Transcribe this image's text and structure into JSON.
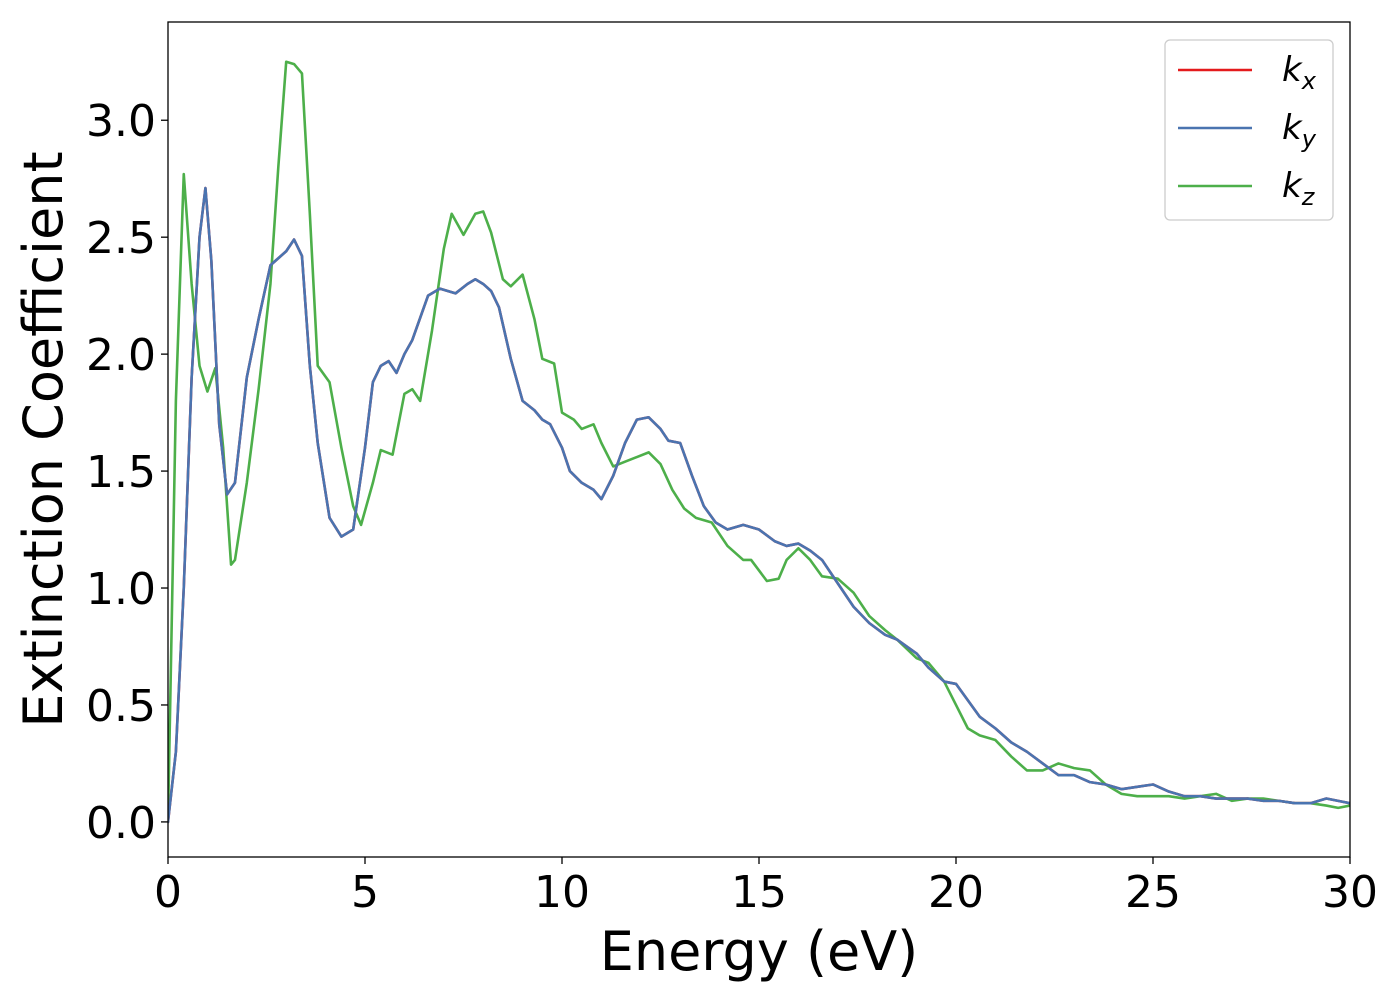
{
  "chart_data": {
    "type": "line",
    "xlabel": "Energy (eV)",
    "ylabel": "Extinction Coefficient",
    "xlim": [
      0,
      30
    ],
    "ylim": [
      -0.15,
      3.42
    ],
    "xticks": [
      "0",
      "5",
      "10",
      "15",
      "20",
      "25",
      "30"
    ],
    "yticks": [
      "0.0",
      "0.5",
      "1.0",
      "1.5",
      "2.0",
      "2.5",
      "3.0"
    ],
    "grid": false,
    "legend_position": "top-right",
    "series": [
      {
        "name": "k_x",
        "label_main": "k",
        "label_sub": "x",
        "color": "#e41a1c",
        "x": [
          0,
          0.2,
          0.4,
          0.6,
          0.8,
          0.95,
          1.1,
          1.3,
          1.5,
          1.7,
          2.0,
          2.3,
          2.6,
          2.8,
          3.0,
          3.2,
          3.4,
          3.6,
          3.8,
          4.1,
          4.4,
          4.7,
          5.0,
          5.2,
          5.4,
          5.6,
          5.8,
          6.0,
          6.2,
          6.6,
          6.9,
          7.3,
          7.6,
          7.8,
          8.0,
          8.2,
          8.4,
          8.7,
          9.0,
          9.3,
          9.5,
          9.7,
          10.0,
          10.2,
          10.5,
          10.8,
          11.0,
          11.3,
          11.6,
          11.9,
          12.2,
          12.5,
          12.7,
          13.0,
          13.3,
          13.6,
          13.9,
          14.2,
          14.6,
          15.0,
          15.4,
          15.7,
          16.0,
          16.3,
          16.6,
          17.0,
          17.4,
          17.8,
          18.2,
          18.5,
          19.0,
          19.3,
          19.7,
          20.0,
          20.3,
          20.6,
          21.0,
          21.4,
          21.8,
          22.2,
          22.6,
          23.0,
          23.4,
          23.8,
          24.2,
          24.6,
          25.0,
          25.4,
          25.8,
          26.2,
          26.6,
          27.0,
          27.4,
          27.8,
          28.2,
          28.6,
          29.0,
          29.4,
          29.7,
          30.0
        ],
        "y": [
          0.0,
          0.3,
          1.0,
          1.9,
          2.5,
          2.71,
          2.4,
          1.7,
          1.4,
          1.45,
          1.9,
          2.15,
          2.38,
          2.41,
          2.44,
          2.49,
          2.42,
          1.95,
          1.62,
          1.3,
          1.22,
          1.25,
          1.6,
          1.88,
          1.95,
          1.97,
          1.92,
          2.0,
          2.06,
          2.25,
          2.28,
          2.26,
          2.3,
          2.32,
          2.3,
          2.27,
          2.2,
          1.98,
          1.8,
          1.76,
          1.72,
          1.7,
          1.6,
          1.5,
          1.45,
          1.42,
          1.38,
          1.48,
          1.62,
          1.72,
          1.73,
          1.68,
          1.63,
          1.62,
          1.48,
          1.35,
          1.28,
          1.25,
          1.27,
          1.25,
          1.2,
          1.18,
          1.19,
          1.16,
          1.12,
          1.02,
          0.92,
          0.85,
          0.8,
          0.78,
          0.72,
          0.66,
          0.6,
          0.59,
          0.52,
          0.45,
          0.4,
          0.34,
          0.3,
          0.25,
          0.2,
          0.2,
          0.17,
          0.16,
          0.14,
          0.15,
          0.16,
          0.13,
          0.11,
          0.11,
          0.1,
          0.1,
          0.1,
          0.09,
          0.09,
          0.08,
          0.08,
          0.1,
          0.09,
          0.08
        ]
      },
      {
        "name": "k_y",
        "label_main": "k",
        "label_sub": "y",
        "color": "#4a74b0",
        "x": [
          0,
          0.2,
          0.4,
          0.6,
          0.8,
          0.95,
          1.1,
          1.3,
          1.5,
          1.7,
          2.0,
          2.3,
          2.6,
          2.8,
          3.0,
          3.2,
          3.4,
          3.6,
          3.8,
          4.1,
          4.4,
          4.7,
          5.0,
          5.2,
          5.4,
          5.6,
          5.8,
          6.0,
          6.2,
          6.6,
          6.9,
          7.3,
          7.6,
          7.8,
          8.0,
          8.2,
          8.4,
          8.7,
          9.0,
          9.3,
          9.5,
          9.7,
          10.0,
          10.2,
          10.5,
          10.8,
          11.0,
          11.3,
          11.6,
          11.9,
          12.2,
          12.5,
          12.7,
          13.0,
          13.3,
          13.6,
          13.9,
          14.2,
          14.6,
          15.0,
          15.4,
          15.7,
          16.0,
          16.3,
          16.6,
          17.0,
          17.4,
          17.8,
          18.2,
          18.5,
          19.0,
          19.3,
          19.7,
          20.0,
          20.3,
          20.6,
          21.0,
          21.4,
          21.8,
          22.2,
          22.6,
          23.0,
          23.4,
          23.8,
          24.2,
          24.6,
          25.0,
          25.4,
          25.8,
          26.2,
          26.6,
          27.0,
          27.4,
          27.8,
          28.2,
          28.6,
          29.0,
          29.4,
          29.7,
          30.0
        ],
        "y": [
          0.0,
          0.3,
          1.0,
          1.9,
          2.5,
          2.71,
          2.4,
          1.7,
          1.4,
          1.45,
          1.9,
          2.15,
          2.38,
          2.41,
          2.44,
          2.49,
          2.42,
          1.95,
          1.62,
          1.3,
          1.22,
          1.25,
          1.6,
          1.88,
          1.95,
          1.97,
          1.92,
          2.0,
          2.06,
          2.25,
          2.28,
          2.26,
          2.3,
          2.32,
          2.3,
          2.27,
          2.2,
          1.98,
          1.8,
          1.76,
          1.72,
          1.7,
          1.6,
          1.5,
          1.45,
          1.42,
          1.38,
          1.48,
          1.62,
          1.72,
          1.73,
          1.68,
          1.63,
          1.62,
          1.48,
          1.35,
          1.28,
          1.25,
          1.27,
          1.25,
          1.2,
          1.18,
          1.19,
          1.16,
          1.12,
          1.02,
          0.92,
          0.85,
          0.8,
          0.78,
          0.72,
          0.66,
          0.6,
          0.59,
          0.52,
          0.45,
          0.4,
          0.34,
          0.3,
          0.25,
          0.2,
          0.2,
          0.17,
          0.16,
          0.14,
          0.15,
          0.16,
          0.13,
          0.11,
          0.11,
          0.1,
          0.1,
          0.1,
          0.09,
          0.09,
          0.08,
          0.08,
          0.1,
          0.09,
          0.08
        ]
      },
      {
        "name": "k_z",
        "label_main": "k",
        "label_sub": "z",
        "color": "#4daf4a",
        "x": [
          0,
          0.2,
          0.4,
          0.6,
          0.8,
          1.0,
          1.2,
          1.4,
          1.6,
          1.7,
          2.0,
          2.3,
          2.6,
          2.8,
          3.0,
          3.2,
          3.4,
          3.6,
          3.8,
          4.1,
          4.4,
          4.7,
          4.9,
          5.2,
          5.4,
          5.7,
          6.0,
          6.2,
          6.4,
          6.7,
          7.0,
          7.2,
          7.5,
          7.8,
          8.0,
          8.2,
          8.5,
          8.7,
          9.0,
          9.3,
          9.5,
          9.8,
          10.0,
          10.3,
          10.5,
          10.8,
          11.0,
          11.3,
          11.6,
          11.9,
          12.2,
          12.5,
          12.8,
          13.1,
          13.4,
          13.8,
          14.2,
          14.6,
          14.8,
          15.2,
          15.5,
          15.7,
          16.0,
          16.3,
          16.6,
          17.0,
          17.4,
          17.8,
          18.2,
          18.5,
          19.0,
          19.3,
          19.7,
          20.0,
          20.3,
          20.6,
          21.0,
          21.4,
          21.8,
          22.2,
          22.6,
          23.0,
          23.4,
          23.8,
          24.2,
          24.6,
          25.0,
          25.4,
          25.8,
          26.2,
          26.6,
          27.0,
          27.4,
          27.8,
          28.2,
          28.6,
          29.0,
          29.4,
          29.7,
          30.0
        ],
        "y": [
          0.0,
          1.8,
          2.77,
          2.3,
          1.95,
          1.84,
          1.94,
          1.6,
          1.1,
          1.12,
          1.45,
          1.85,
          2.3,
          2.8,
          3.25,
          3.24,
          3.2,
          2.6,
          1.95,
          1.88,
          1.6,
          1.35,
          1.27,
          1.45,
          1.59,
          1.57,
          1.83,
          1.85,
          1.8,
          2.1,
          2.45,
          2.6,
          2.51,
          2.6,
          2.61,
          2.52,
          2.32,
          2.29,
          2.34,
          2.15,
          1.98,
          1.96,
          1.75,
          1.72,
          1.68,
          1.7,
          1.62,
          1.52,
          1.54,
          1.56,
          1.58,
          1.53,
          1.42,
          1.34,
          1.3,
          1.28,
          1.18,
          1.12,
          1.12,
          1.03,
          1.04,
          1.12,
          1.17,
          1.12,
          1.05,
          1.04,
          0.98,
          0.88,
          0.82,
          0.78,
          0.7,
          0.68,
          0.6,
          0.5,
          0.4,
          0.37,
          0.35,
          0.28,
          0.22,
          0.22,
          0.25,
          0.23,
          0.22,
          0.16,
          0.12,
          0.11,
          0.11,
          0.11,
          0.1,
          0.11,
          0.12,
          0.09,
          0.1,
          0.1,
          0.09,
          0.08,
          0.08,
          0.07,
          0.06,
          0.07
        ]
      }
    ]
  }
}
